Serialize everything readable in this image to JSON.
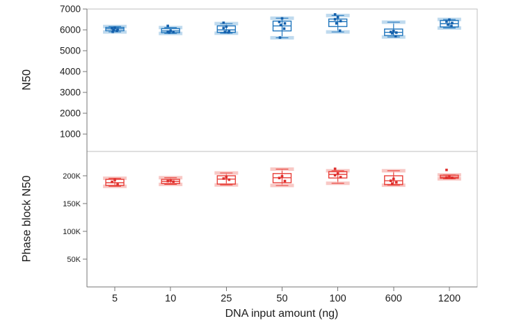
{
  "chart_data": {
    "type": "boxplot",
    "xlabel": "DNA input amount (ng)",
    "categories": [
      "5",
      "10",
      "25",
      "50",
      "100",
      "600",
      "1200"
    ],
    "layout": {
      "grid": false,
      "legend_position": "none",
      "panels_stacked": 2
    },
    "colors": {
      "frame": "#bfbfbf",
      "axis": "#767676",
      "text": "#1c1c1c",
      "background": "#ffffff"
    },
    "panels": [
      {
        "ylabel": "N50",
        "color": "#2176bd",
        "point_color": "#1460ac",
        "band_color": "#a9cde8",
        "ylim": [
          167,
          7000
        ],
        "tick_values": [
          1000,
          2000,
          3000,
          4000,
          5000,
          6000,
          7000
        ],
        "tick_labels": [
          "1000",
          "2000",
          "3000",
          "4000",
          "5000",
          "6000",
          "7000"
        ],
        "boxes": [
          {
            "category": "5",
            "low": 5900,
            "q1": 5960,
            "median": 6050,
            "q3": 6120,
            "high": 6160,
            "points": [
              6110,
              6070,
              6030,
              5990,
              5950,
              5910
            ],
            "outliers": []
          },
          {
            "category": "10",
            "low": 5830,
            "q1": 5865,
            "median": 5950,
            "q3": 6060,
            "high": 6110,
            "points": [
              5960,
              5915,
              5890,
              5870
            ],
            "outliers": [
              6190
            ]
          },
          {
            "category": "25",
            "low": 5840,
            "q1": 5880,
            "median": 6000,
            "q3": 6190,
            "high": 6300,
            "points": [
              6160,
              6090,
              5930,
              5900,
              5880
            ],
            "outliers": [
              6340
            ]
          },
          {
            "category": "50",
            "low": 5620,
            "q1": 5950,
            "median": 6190,
            "q3": 6420,
            "high": 6560,
            "points": [
              6550,
              6380,
              6310,
              6230,
              6060,
              5630
            ],
            "outliers": []
          },
          {
            "category": "100",
            "low": 5900,
            "q1": 6160,
            "median": 6400,
            "q3": 6520,
            "high": 6690,
            "points": [
              6610,
              6510,
              6420,
              6310,
              5960
            ],
            "outliers": [
              6740
            ]
          },
          {
            "category": "600",
            "low": 5660,
            "q1": 5730,
            "median": 5880,
            "q3": 6040,
            "high": 6370,
            "points": [
              5940,
              5900,
              5870,
              5840,
              5690
            ],
            "outliers": []
          },
          {
            "category": "1200",
            "low": 6090,
            "q1": 6140,
            "median": 6300,
            "q3": 6450,
            "high": 6500,
            "points": [
              6490,
              6400,
              6330,
              6250,
              6190
            ],
            "outliers": []
          }
        ]
      },
      {
        "ylabel": "Phase block N50",
        "color": "#e8403a",
        "point_color": "#de2f2d",
        "band_color": "#f5b5b2",
        "ylim": [
          0,
          243750
        ],
        "tick_values": [
          50000,
          100000,
          150000,
          200000
        ],
        "tick_labels": [
          "50K",
          "100K",
          "150K",
          "200K"
        ],
        "boxes": [
          {
            "category": "5",
            "low": 181000,
            "q1": 182500,
            "median": 187500,
            "q3": 193500,
            "high": 195500,
            "points": [
              192500,
              189000,
              184500
            ],
            "outliers": []
          },
          {
            "category": "10",
            "low": 184500,
            "q1": 186000,
            "median": 190000,
            "q3": 193500,
            "high": 196500,
            "points": [
              191500,
              190500,
              189500
            ],
            "outliers": []
          },
          {
            "category": "25",
            "low": 183500,
            "q1": 185000,
            "median": 194000,
            "q3": 200000,
            "high": 205000,
            "points": [
              197500,
              195000,
              193000
            ],
            "outliers": []
          },
          {
            "category": "50",
            "low": 182500,
            "q1": 187500,
            "median": 196500,
            "q3": 204000,
            "high": 212000,
            "points": [
              199000,
              196000,
              190500
            ],
            "outliers": []
          },
          {
            "category": "100",
            "low": 186500,
            "q1": 196000,
            "median": 202500,
            "q3": 207500,
            "high": 209000,
            "points": [
              204000,
              201000,
              197500
            ],
            "outliers": [
              212500
            ]
          },
          {
            "category": "600",
            "low": 183000,
            "q1": 184000,
            "median": 191000,
            "q3": 200000,
            "high": 209000,
            "points": [
              194500,
              191000,
              188000,
              186000
            ],
            "outliers": []
          },
          {
            "category": "1200",
            "low": 194500,
            "q1": 195500,
            "median": 197500,
            "q3": 201000,
            "high": 201500,
            "points": [
              198000,
              197000,
              196500
            ],
            "outliers": [
              210500
            ]
          }
        ]
      }
    ]
  }
}
